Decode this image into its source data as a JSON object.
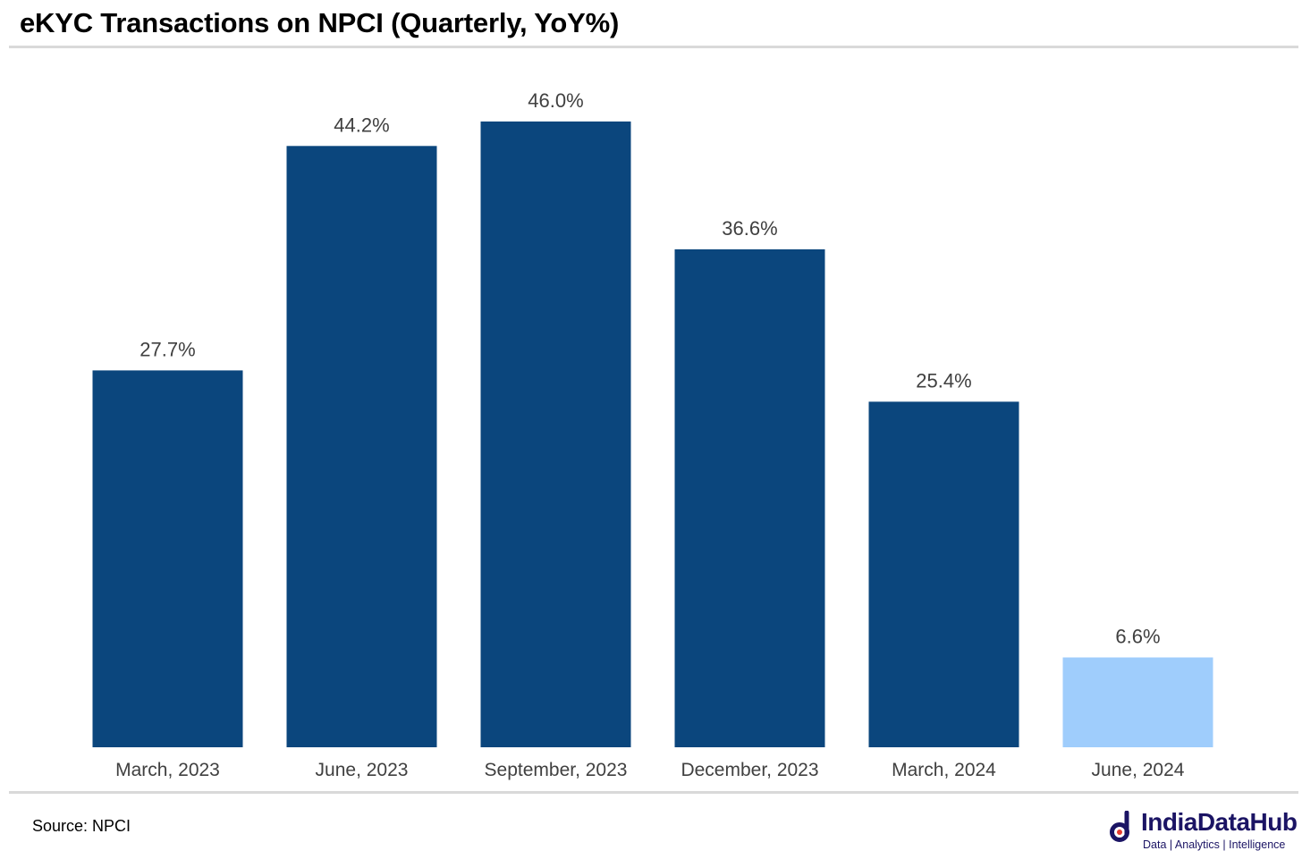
{
  "title": "eKYC Transactions on NPCI (Quarterly, YoY%)",
  "source": "Source: NPCI",
  "brand": {
    "name": "IndiaDataHub",
    "tagline": "Data | Analytics | Intelligence",
    "color": "#1b1464",
    "icon": "indiadatahub-logo-icon"
  },
  "colors": {
    "bar": "#0b467d",
    "highlight": "#9fcdfc",
    "label": "#404040"
  },
  "chart_data": {
    "type": "bar",
    "title": "eKYC Transactions on NPCI (Quarterly, YoY%)",
    "xlabel": "",
    "ylabel": "",
    "categories": [
      "March, 2023",
      "June, 2023",
      "September, 2023",
      "December, 2023",
      "March, 2024",
      "June, 2024"
    ],
    "values": [
      27.7,
      44.2,
      46.0,
      36.6,
      25.4,
      6.6
    ],
    "value_labels": [
      "27.7%",
      "44.2%",
      "46.0%",
      "36.6%",
      "25.4%",
      "6.6%"
    ],
    "highlighted_category": "June, 2024",
    "ylim": [
      0,
      50
    ],
    "grid": false,
    "legend": "none"
  }
}
